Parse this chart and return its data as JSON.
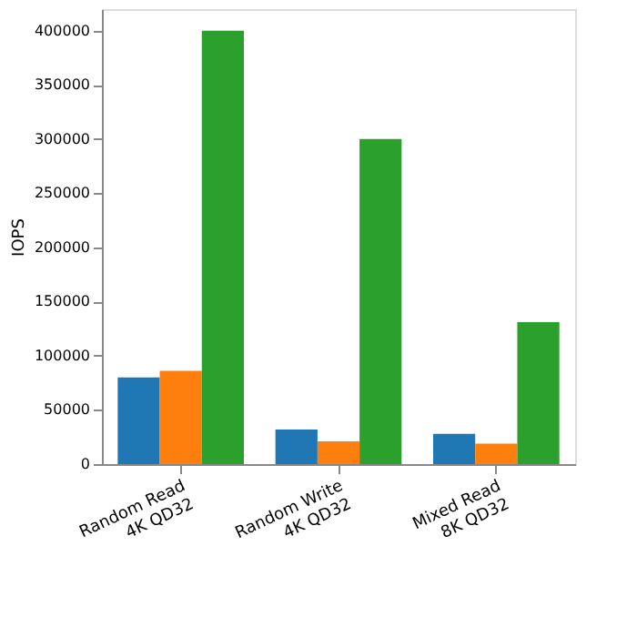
{
  "chart_data": {
    "type": "bar",
    "categories": [
      "Random Read\n4K QD32",
      "Random Write\n4K QD32",
      "Mixed Read\n8K QD32"
    ],
    "series": [
      {
        "color": "#1f77b4",
        "values": [
          80000,
          32000,
          28000
        ]
      },
      {
        "color": "#ff7f0e",
        "values": [
          86000,
          21000,
          19000
        ]
      },
      {
        "color": "#2ca02c",
        "values": [
          400000,
          300000,
          131000
        ]
      }
    ],
    "ylabel": "IOPS",
    "ylim": [
      0,
      420000
    ],
    "yticks": [
      0,
      50000,
      100000,
      150000,
      200000,
      250000,
      300000,
      350000,
      400000
    ],
    "grid": false,
    "legend": false
  }
}
